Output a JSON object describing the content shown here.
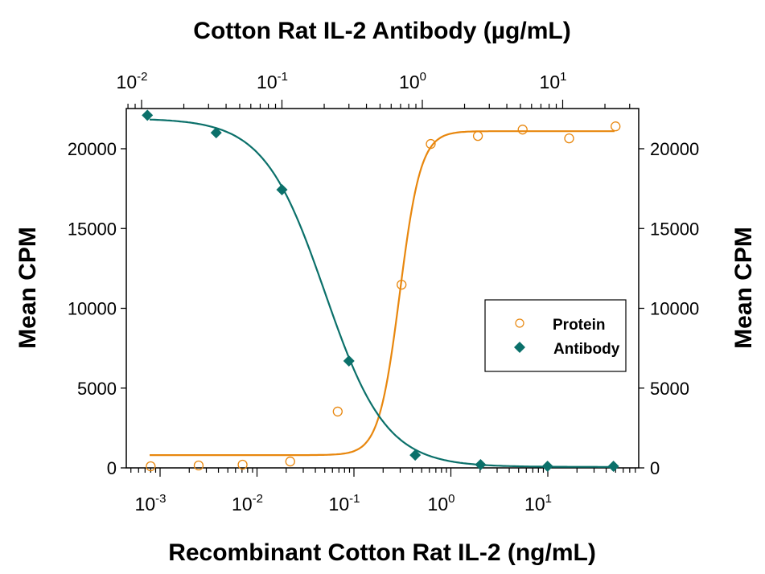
{
  "chart_data": {
    "type": "scatter",
    "title": "Cotton Rat IL-2 Antibody (µg/mL)",
    "top_axis": {
      "label": "Cotton Rat IL-2 Antibody (µg/mL)",
      "scale": "log",
      "ticks": [
        "10^-2",
        "10^-1",
        "10^0",
        "10^1"
      ],
      "tick_values": [
        0.01,
        0.1,
        1,
        10
      ],
      "range": [
        0.0075,
        28
      ]
    },
    "xlabel": "Recombinant Cotton Rat IL-2 (ng/mL)",
    "x_scale": "log",
    "x_ticks": [
      "10^-3",
      "10^-2",
      "10^-1",
      "10^0",
      "10^1"
    ],
    "x_tick_values": [
      0.001,
      0.01,
      0.1,
      1,
      10
    ],
    "xlim": [
      0.0004,
      120
    ],
    "ylabel": "Mean CPM",
    "ylabel_right": "Mean CPM",
    "y_ticks": [
      0,
      5000,
      10000,
      15000,
      20000
    ],
    "ylim": [
      0,
      22500
    ],
    "grid": false,
    "legend_position": "center-right",
    "series": [
      {
        "name": "Protein",
        "axis": "bottom (ng/mL)",
        "marker": "open-circle",
        "color": "#E8870E",
        "x": [
          0.0008,
          0.0025,
          0.0071,
          0.022,
          0.068,
          0.31,
          0.62,
          1.9,
          5.5,
          16.6,
          50
        ],
        "y": [
          100,
          150,
          200,
          400,
          3530,
          11480,
          20300,
          20800,
          21200,
          20650,
          21400
        ],
        "fit": "sigmoid",
        "fit_bottom": 800,
        "fit_top": 21100
      },
      {
        "name": "Antibody",
        "axis": "top (µg/mL)",
        "marker": "filled-diamond",
        "color": "#0B706A",
        "x": [
          0.011,
          0.034,
          0.1,
          0.3,
          0.89,
          2.6,
          7.8,
          23
        ],
        "y": [
          22100,
          21000,
          17430,
          6700,
          800,
          200,
          100,
          100
        ],
        "fit": "sigmoid",
        "fit_bottom": 60,
        "fit_top": 21900
      }
    ]
  },
  "labels": {
    "top_title": "Cotton Rat IL-2 Antibody (µg/mL)",
    "bottom_title": "Recombinant Cotton Rat IL-2 (ng/mL)",
    "left_title": "Mean CPM",
    "right_title": "Mean CPM",
    "legend_protein": "Protein",
    "legend_antibody": "Antibody",
    "y_tick_labels": [
      "0",
      "5000",
      "10000",
      "15000",
      "20000"
    ],
    "bottom_tick_base": "10",
    "bottom_tick_exps": [
      "-3",
      "-2",
      "-1",
      "0",
      "1"
    ],
    "top_tick_base": "10",
    "top_tick_exps": [
      "-2",
      "-1",
      "0",
      "1"
    ]
  }
}
